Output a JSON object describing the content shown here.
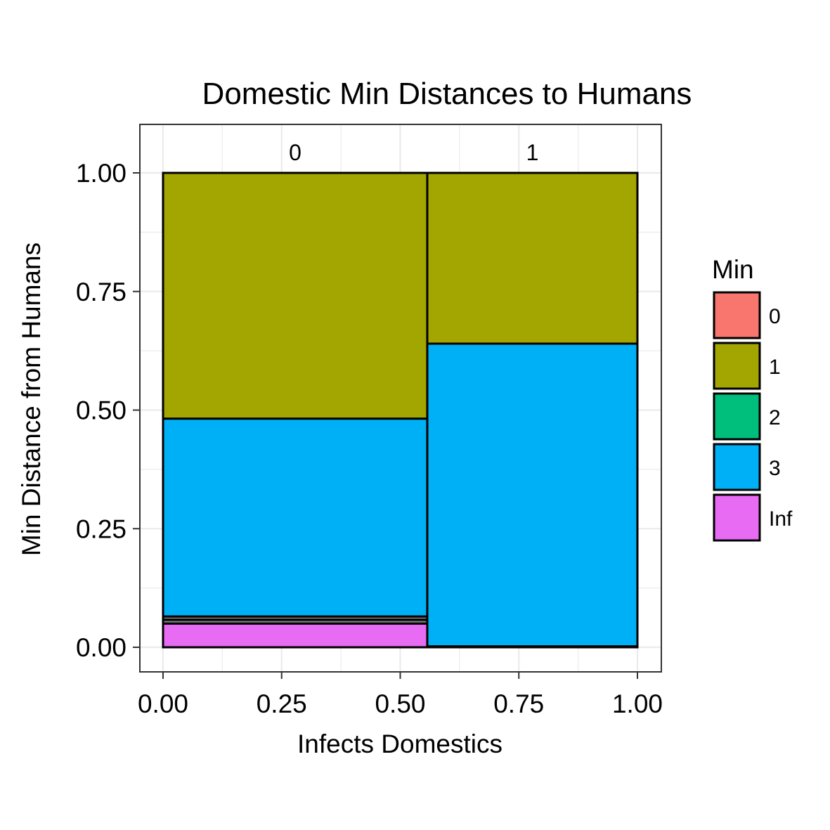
{
  "chart_data": {
    "type": "mosaic",
    "title": "Domestic Min Distances to Humans",
    "xlabel": "Infects Domestics",
    "ylabel": "Min Distance from Humans",
    "xlim": [
      0,
      1
    ],
    "ylim": [
      0,
      1
    ],
    "x_ticks": [
      "0.00",
      "0.25",
      "0.50",
      "0.75",
      "1.00"
    ],
    "y_ticks": [
      "0.00",
      "0.25",
      "0.50",
      "0.75",
      "1.00"
    ],
    "grid": true,
    "legend": {
      "title": "Min",
      "position": "right",
      "entries": [
        {
          "label": "0",
          "color": "#F8766D"
        },
        {
          "label": "1",
          "color": "#A3A500"
        },
        {
          "label": "2",
          "color": "#00BF7D"
        },
        {
          "label": "3",
          "color": "#00B0F6"
        },
        {
          "label": "Inf",
          "color": "#E76BF3"
        }
      ]
    },
    "na_color": "#7F7F7F",
    "groups": [
      {
        "label": "0",
        "x_start": 0.0,
        "x_end": 0.557,
        "segments": [
          {
            "category": "Inf",
            "y_start": 0.0,
            "y_end": 0.05
          },
          {
            "category": "NA",
            "y_start": 0.05,
            "y_end": 0.058
          },
          {
            "category": "NA",
            "y_start": 0.058,
            "y_end": 0.065
          },
          {
            "category": "3",
            "y_start": 0.065,
            "y_end": 0.482
          },
          {
            "category": "1",
            "y_start": 0.482,
            "y_end": 1.0
          }
        ]
      },
      {
        "label": "1",
        "x_start": 0.557,
        "x_end": 1.0,
        "segments": [
          {
            "category": "Inf",
            "y_start": 0.0,
            "y_end": 0.002
          },
          {
            "category": "3",
            "y_start": 0.002,
            "y_end": 0.64
          },
          {
            "category": "1",
            "y_start": 0.64,
            "y_end": 1.0
          }
        ]
      }
    ]
  }
}
